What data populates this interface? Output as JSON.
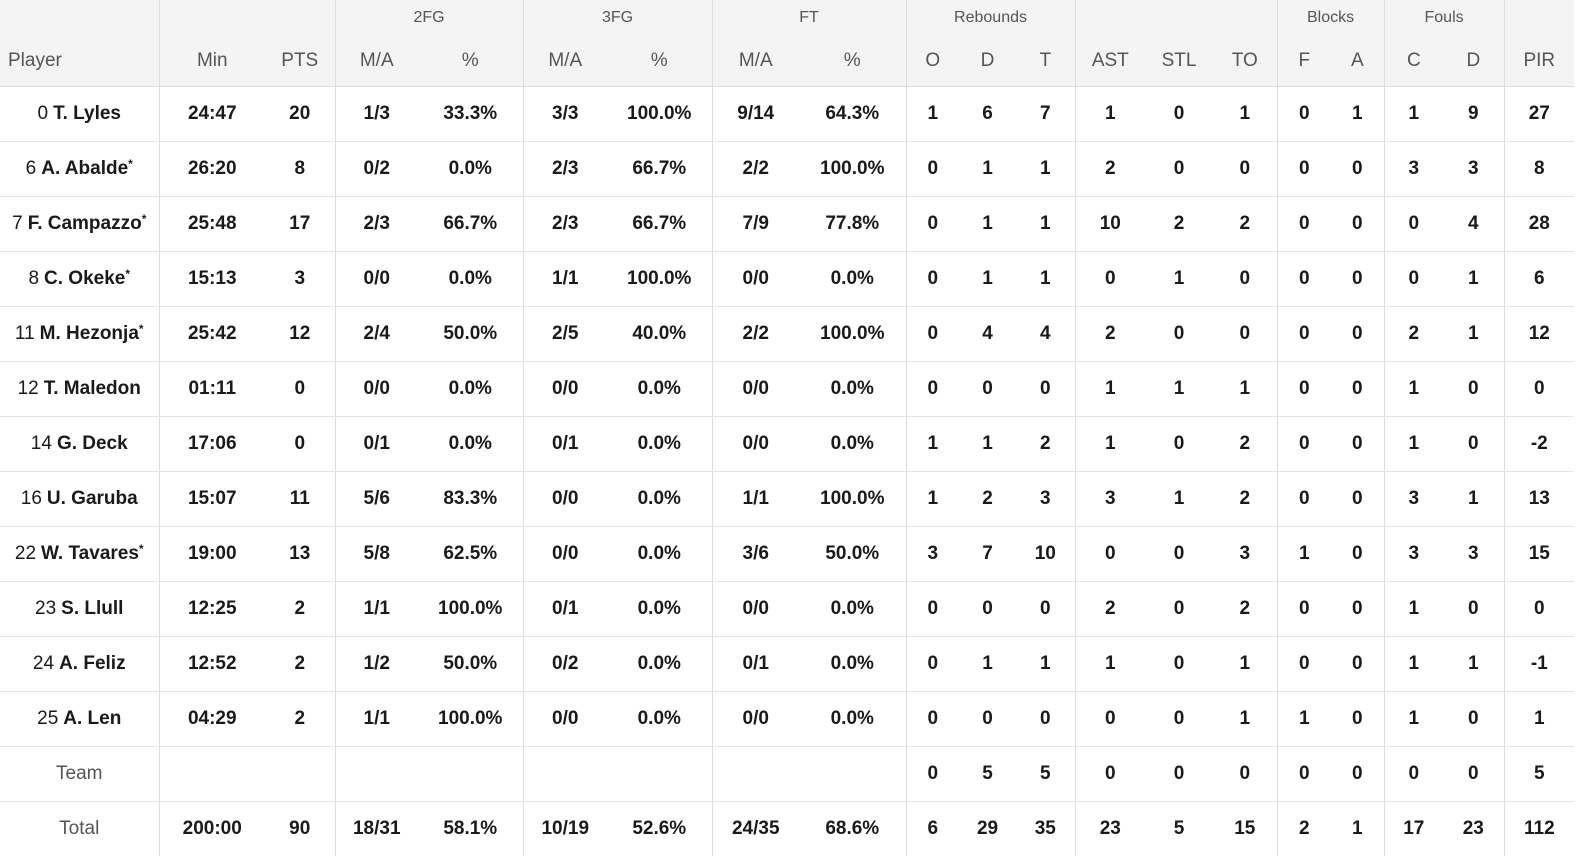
{
  "header": {
    "groups": {
      "fg2": "2FG",
      "fg3": "3FG",
      "ft": "FT",
      "rebounds": "Rebounds",
      "blocks": "Blocks",
      "fouls": "Fouls"
    },
    "columns": {
      "player": "Player",
      "min": "Min",
      "pts": "PTS",
      "fg2_ma": "M/A",
      "fg2_pct": "%",
      "fg3_ma": "M/A",
      "fg3_pct": "%",
      "ft_ma": "M/A",
      "ft_pct": "%",
      "reb_o": "O",
      "reb_d": "D",
      "reb_t": "T",
      "ast": "AST",
      "stl": "STL",
      "to": "TO",
      "blk_f": "F",
      "blk_a": "A",
      "foul_c": "C",
      "foul_d": "D",
      "pir": "PIR"
    }
  },
  "rows": [
    {
      "num": "0",
      "name": "T. Lyles",
      "starter": "",
      "min": "24:47",
      "pts": "20",
      "fg2_ma": "1/3",
      "fg2_pct": "33.3%",
      "fg3_ma": "3/3",
      "fg3_pct": "100.0%",
      "ft_ma": "9/14",
      "ft_pct": "64.3%",
      "reb_o": "1",
      "reb_d": "6",
      "reb_t": "7",
      "ast": "1",
      "stl": "0",
      "to": "1",
      "blk_f": "0",
      "blk_a": "1",
      "foul_c": "1",
      "foul_d": "9",
      "pir": "27"
    },
    {
      "num": "6",
      "name": "A. Abalde",
      "starter": "*",
      "min": "26:20",
      "pts": "8",
      "fg2_ma": "0/2",
      "fg2_pct": "0.0%",
      "fg3_ma": "2/3",
      "fg3_pct": "66.7%",
      "ft_ma": "2/2",
      "ft_pct": "100.0%",
      "reb_o": "0",
      "reb_d": "1",
      "reb_t": "1",
      "ast": "2",
      "stl": "0",
      "to": "0",
      "blk_f": "0",
      "blk_a": "0",
      "foul_c": "3",
      "foul_d": "3",
      "pir": "8"
    },
    {
      "num": "7",
      "name": "F. Campazzo",
      "starter": "*",
      "min": "25:48",
      "pts": "17",
      "fg2_ma": "2/3",
      "fg2_pct": "66.7%",
      "fg3_ma": "2/3",
      "fg3_pct": "66.7%",
      "ft_ma": "7/9",
      "ft_pct": "77.8%",
      "reb_o": "0",
      "reb_d": "1",
      "reb_t": "1",
      "ast": "10",
      "stl": "2",
      "to": "2",
      "blk_f": "0",
      "blk_a": "0",
      "foul_c": "0",
      "foul_d": "4",
      "pir": "28"
    },
    {
      "num": "8",
      "name": "C. Okeke",
      "starter": "*",
      "min": "15:13",
      "pts": "3",
      "fg2_ma": "0/0",
      "fg2_pct": "0.0%",
      "fg3_ma": "1/1",
      "fg3_pct": "100.0%",
      "ft_ma": "0/0",
      "ft_pct": "0.0%",
      "reb_o": "0",
      "reb_d": "1",
      "reb_t": "1",
      "ast": "0",
      "stl": "1",
      "to": "0",
      "blk_f": "0",
      "blk_a": "0",
      "foul_c": "0",
      "foul_d": "1",
      "pir": "6"
    },
    {
      "num": "11",
      "name": "M. Hezonja",
      "starter": "*",
      "min": "25:42",
      "pts": "12",
      "fg2_ma": "2/4",
      "fg2_pct": "50.0%",
      "fg3_ma": "2/5",
      "fg3_pct": "40.0%",
      "ft_ma": "2/2",
      "ft_pct": "100.0%",
      "reb_o": "0",
      "reb_d": "4",
      "reb_t": "4",
      "ast": "2",
      "stl": "0",
      "to": "0",
      "blk_f": "0",
      "blk_a": "0",
      "foul_c": "2",
      "foul_d": "1",
      "pir": "12"
    },
    {
      "num": "12",
      "name": "T. Maledon",
      "starter": "",
      "min": "01:11",
      "pts": "0",
      "fg2_ma": "0/0",
      "fg2_pct": "0.0%",
      "fg3_ma": "0/0",
      "fg3_pct": "0.0%",
      "ft_ma": "0/0",
      "ft_pct": "0.0%",
      "reb_o": "0",
      "reb_d": "0",
      "reb_t": "0",
      "ast": "1",
      "stl": "1",
      "to": "1",
      "blk_f": "0",
      "blk_a": "0",
      "foul_c": "1",
      "foul_d": "0",
      "pir": "0"
    },
    {
      "num": "14",
      "name": "G. Deck",
      "starter": "",
      "min": "17:06",
      "pts": "0",
      "fg2_ma": "0/1",
      "fg2_pct": "0.0%",
      "fg3_ma": "0/1",
      "fg3_pct": "0.0%",
      "ft_ma": "0/0",
      "ft_pct": "0.0%",
      "reb_o": "1",
      "reb_d": "1",
      "reb_t": "2",
      "ast": "1",
      "stl": "0",
      "to": "2",
      "blk_f": "0",
      "blk_a": "0",
      "foul_c": "1",
      "foul_d": "0",
      "pir": "-2"
    },
    {
      "num": "16",
      "name": "U. Garuba",
      "starter": "",
      "min": "15:07",
      "pts": "11",
      "fg2_ma": "5/6",
      "fg2_pct": "83.3%",
      "fg3_ma": "0/0",
      "fg3_pct": "0.0%",
      "ft_ma": "1/1",
      "ft_pct": "100.0%",
      "reb_o": "1",
      "reb_d": "2",
      "reb_t": "3",
      "ast": "3",
      "stl": "1",
      "to": "2",
      "blk_f": "0",
      "blk_a": "0",
      "foul_c": "3",
      "foul_d": "1",
      "pir": "13"
    },
    {
      "num": "22",
      "name": "W. Tavares",
      "starter": "*",
      "min": "19:00",
      "pts": "13",
      "fg2_ma": "5/8",
      "fg2_pct": "62.5%",
      "fg3_ma": "0/0",
      "fg3_pct": "0.0%",
      "ft_ma": "3/6",
      "ft_pct": "50.0%",
      "reb_o": "3",
      "reb_d": "7",
      "reb_t": "10",
      "ast": "0",
      "stl": "0",
      "to": "3",
      "blk_f": "1",
      "blk_a": "0",
      "foul_c": "3",
      "foul_d": "3",
      "pir": "15"
    },
    {
      "num": "23",
      "name": "S. Llull",
      "starter": "",
      "min": "12:25",
      "pts": "2",
      "fg2_ma": "1/1",
      "fg2_pct": "100.0%",
      "fg3_ma": "0/1",
      "fg3_pct": "0.0%",
      "ft_ma": "0/0",
      "ft_pct": "0.0%",
      "reb_o": "0",
      "reb_d": "0",
      "reb_t": "0",
      "ast": "2",
      "stl": "0",
      "to": "2",
      "blk_f": "0",
      "blk_a": "0",
      "foul_c": "1",
      "foul_d": "0",
      "pir": "0"
    },
    {
      "num": "24",
      "name": "A. Feliz",
      "starter": "",
      "min": "12:52",
      "pts": "2",
      "fg2_ma": "1/2",
      "fg2_pct": "50.0%",
      "fg3_ma": "0/2",
      "fg3_pct": "0.0%",
      "ft_ma": "0/1",
      "ft_pct": "0.0%",
      "reb_o": "0",
      "reb_d": "1",
      "reb_t": "1",
      "ast": "1",
      "stl": "0",
      "to": "1",
      "blk_f": "0",
      "blk_a": "0",
      "foul_c": "1",
      "foul_d": "1",
      "pir": "-1"
    },
    {
      "num": "25",
      "name": "A. Len",
      "starter": "",
      "min": "04:29",
      "pts": "2",
      "fg2_ma": "1/1",
      "fg2_pct": "100.0%",
      "fg3_ma": "0/0",
      "fg3_pct": "0.0%",
      "ft_ma": "0/0",
      "ft_pct": "0.0%",
      "reb_o": "0",
      "reb_d": "0",
      "reb_t": "0",
      "ast": "0",
      "stl": "0",
      "to": "1",
      "blk_f": "1",
      "blk_a": "0",
      "foul_c": "1",
      "foul_d": "0",
      "pir": "1"
    }
  ],
  "team": {
    "label": "Team",
    "min": "",
    "pts": "",
    "fg2_ma": "",
    "fg2_pct": "",
    "fg3_ma": "",
    "fg3_pct": "",
    "ft_ma": "",
    "ft_pct": "",
    "reb_o": "0",
    "reb_d": "5",
    "reb_t": "5",
    "ast": "0",
    "stl": "0",
    "to": "0",
    "blk_f": "0",
    "blk_a": "0",
    "foul_c": "0",
    "foul_d": "0",
    "pir": "5"
  },
  "total": {
    "label": "Total",
    "min": "200:00",
    "pts": "90",
    "fg2_ma": "18/31",
    "fg2_pct": "58.1%",
    "fg3_ma": "10/19",
    "fg3_pct": "52.6%",
    "ft_ma": "24/35",
    "ft_pct": "68.6%",
    "reb_o": "6",
    "reb_d": "29",
    "reb_t": "35",
    "ast": "23",
    "stl": "5",
    "to": "15",
    "blk_f": "2",
    "blk_a": "1",
    "foul_c": "17",
    "foul_d": "23",
    "pir": "112"
  }
}
